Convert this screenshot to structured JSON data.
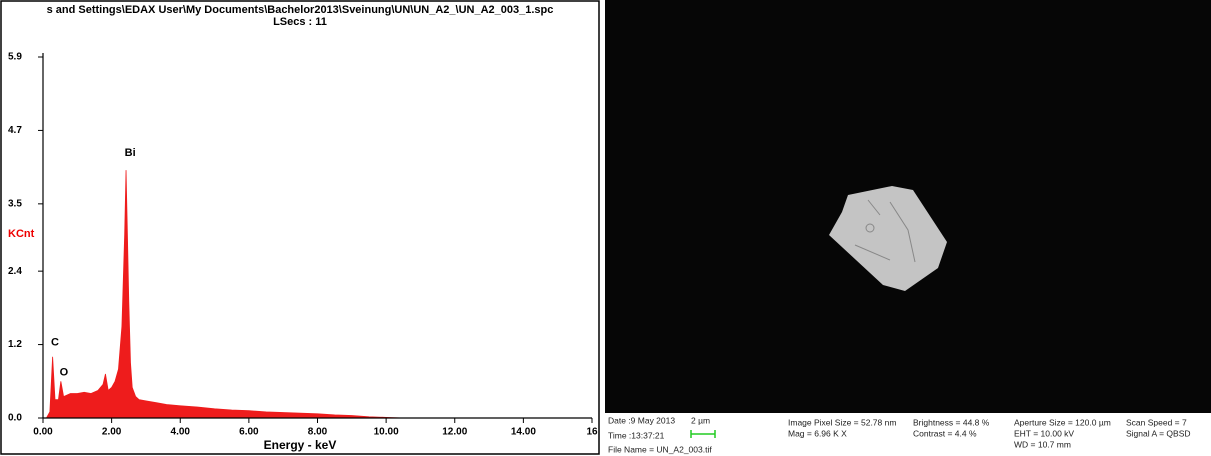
{
  "chart_data": {
    "type": "area",
    "title": "s and Settings\\EDAX User\\My Documents\\Bachelor2013\\Sveinung\\UN\\UN_A2_\\UN_A2_003_1.spc",
    "subtitle": "LSecs : 11",
    "x_label": "Energy - keV",
    "y_label": "KCnt",
    "color": "#ee1c1c",
    "x": [
      0.1,
      0.2,
      0.28,
      0.35,
      0.45,
      0.52,
      0.6,
      0.8,
      1.0,
      1.2,
      1.4,
      1.6,
      1.75,
      1.82,
      1.9,
      2.0,
      2.1,
      2.2,
      2.3,
      2.38,
      2.42,
      2.46,
      2.5,
      2.55,
      2.6,
      2.7,
      2.8,
      3.0,
      3.3,
      3.6,
      4.0,
      4.5,
      5.0,
      5.5,
      6.0,
      6.5,
      7.0,
      7.5,
      8.0,
      8.5,
      9.0,
      9.5,
      10.0,
      10.5
    ],
    "values": [
      0,
      0.1,
      1.0,
      0.3,
      0.3,
      0.6,
      0.35,
      0.4,
      0.4,
      0.42,
      0.4,
      0.45,
      0.55,
      0.72,
      0.45,
      0.5,
      0.6,
      0.8,
      1.5,
      3.0,
      4.05,
      3.0,
      1.9,
      0.9,
      0.5,
      0.35,
      0.3,
      0.28,
      0.25,
      0.22,
      0.2,
      0.18,
      0.15,
      0.13,
      0.12,
      0.1,
      0.09,
      0.08,
      0.07,
      0.05,
      0.04,
      0.02,
      0.01,
      0.0
    ],
    "xlim": [
      0,
      16
    ],
    "ylim": [
      0,
      5.9
    ],
    "xticks": [
      {
        "value": 0,
        "label": "0.00"
      },
      {
        "value": 2,
        "label": "2.00"
      },
      {
        "value": 4,
        "label": "4.00"
      },
      {
        "value": 6,
        "label": "6.00"
      },
      {
        "value": 8,
        "label": "8.00"
      },
      {
        "value": 10,
        "label": "10.00"
      },
      {
        "value": 12,
        "label": "12.00"
      },
      {
        "value": 14,
        "label": "14.00"
      },
      16
    ],
    "yticks": [
      {
        "value": 0,
        "label": "0.0"
      },
      1.2,
      2.4,
      3.5,
      4.7,
      5.9
    ],
    "annotations": [
      {
        "text": "C",
        "x": 0.35,
        "y": 1.23
      },
      {
        "text": "O",
        "x": 0.61,
        "y": 0.74
      },
      {
        "text": "Bi",
        "x": 2.54,
        "y": 4.33
      }
    ]
  },
  "sem_image": {
    "date": "Date :9 May 2013",
    "time": "Time :13:37:21",
    "file_name": "File Name = UN_A2_003.tif",
    "scale_bar": "2 µm",
    "pixel_size": "Image Pixel Size = 52.78 nm",
    "mag": "Mag =  6.96 K X",
    "brightness": "Brightness = 44.8 %",
    "contrast": "Contrast =  4.4 %",
    "aperture": "Aperture Size = 120.0 µm",
    "eht": "EHT = 10.00 kV",
    "wd": "WD = 10.7 mm",
    "scan_speed": "Scan Speed = 7",
    "signal": "Signal A = QBSD"
  }
}
